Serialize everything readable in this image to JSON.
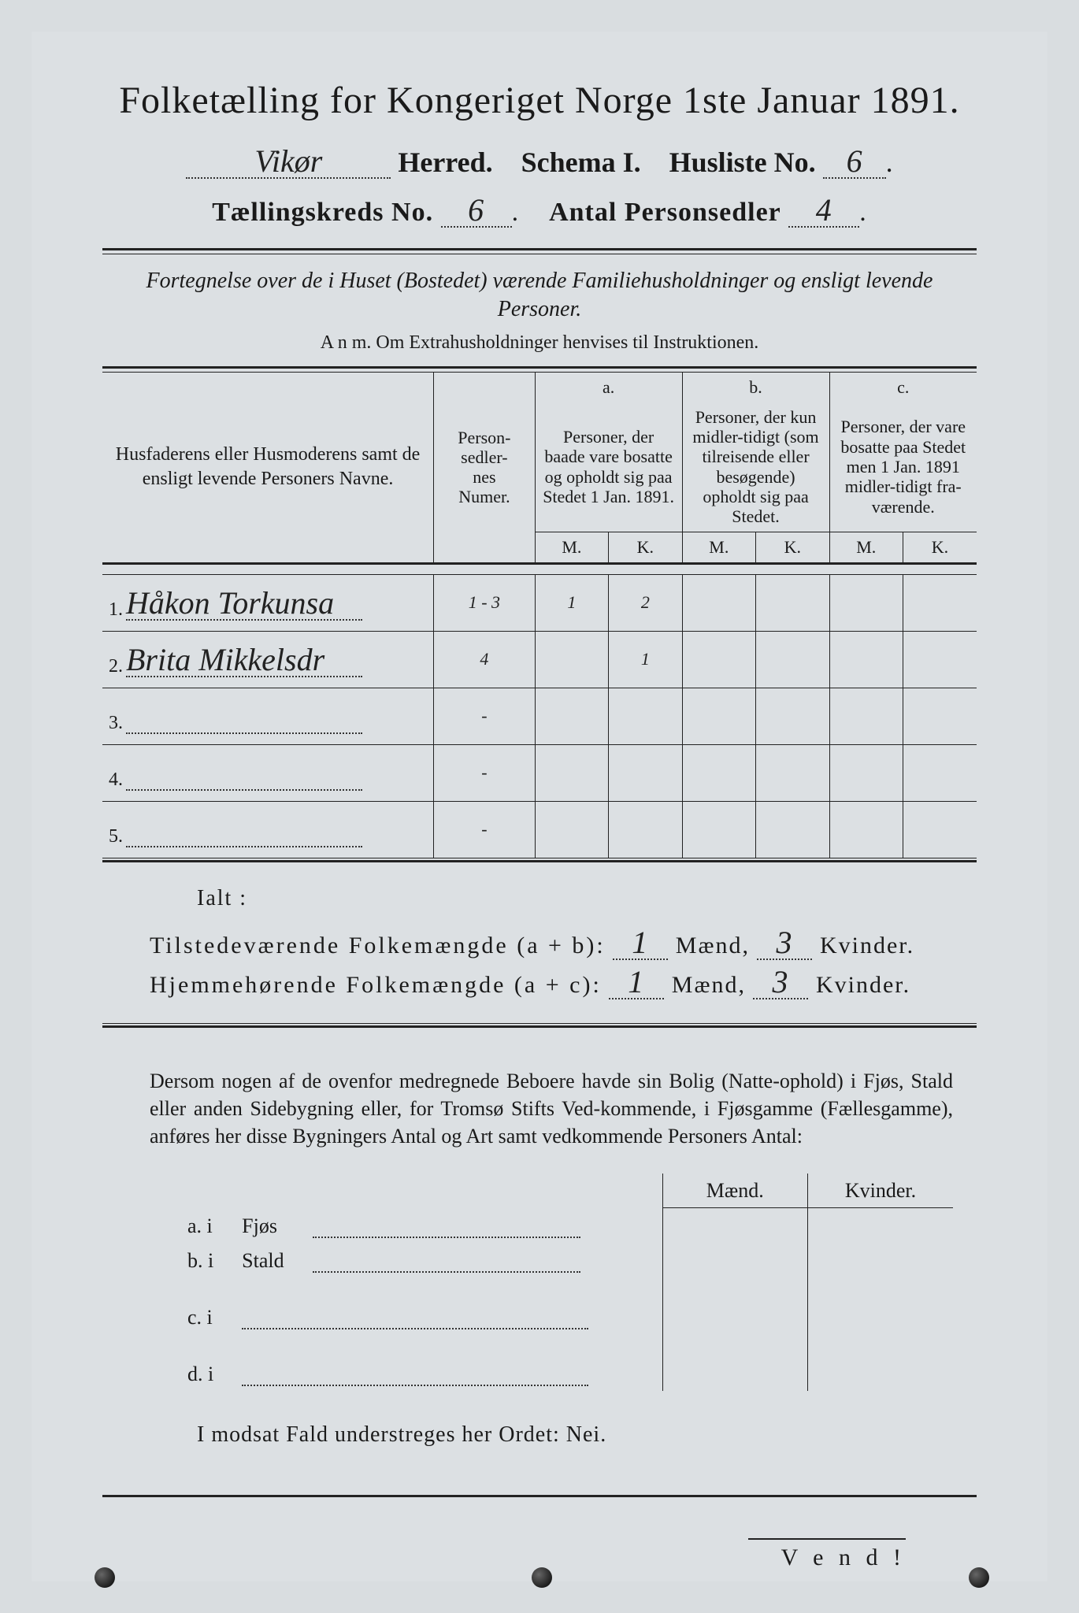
{
  "background_color": "#d9dde0",
  "text_color": "#1a1a1a",
  "title": "Folketælling for Kongeriget Norge 1ste Januar 1891.",
  "line2": {
    "herred_hw": "Vikør",
    "herred_label": "Herred.",
    "schema_label": "Schema I.",
    "husliste_label": "Husliste No.",
    "husliste_hw": "6"
  },
  "line3": {
    "kreds_label": "Tællingskreds No.",
    "kreds_hw": "6",
    "antal_label": "Antal Personsedler",
    "antal_hw": "4"
  },
  "subtitle": "Fortegnelse over de i Huset (Bostedet) værende Familiehusholdninger og ensligt levende Personer.",
  "anm": "A n m.  Om Extrahusholdninger henvises til Instruktionen.",
  "table": {
    "col_name_header": "Husfaderens eller Husmoderens samt de ensligt levende Personers Navne.",
    "col_num_header": "Person-\nsedler-\nnes\nNumer.",
    "col_a_label": "a.",
    "col_a_text": "Personer, der baade vare bosatte og opholdt sig paa Stedet 1 Jan. 1891.",
    "col_b_label": "b.",
    "col_b_text": "Personer, der kun midler-tidigt (som tilreisende eller besøgende) opholdt sig paa Stedet.",
    "col_c_label": "c.",
    "col_c_text": "Personer, der vare bosatte paa Stedet men 1 Jan. 1891 midler-tidigt fra-værende.",
    "M": "M.",
    "K": "K.",
    "rows": [
      {
        "n": "1.",
        "name": "Håkon Torkunsa",
        "num": "1 - 3",
        "aM": "1",
        "aK": "2",
        "bM": "",
        "bK": "",
        "cM": "",
        "cK": ""
      },
      {
        "n": "2.",
        "name": "Brita Mikkelsdr",
        "num": "4",
        "aM": "",
        "aK": "1",
        "bM": "",
        "bK": "",
        "cM": "",
        "cK": ""
      },
      {
        "n": "3.",
        "name": "",
        "num": "-",
        "aM": "",
        "aK": "",
        "bM": "",
        "bK": "",
        "cM": "",
        "cK": ""
      },
      {
        "n": "4.",
        "name": "",
        "num": "-",
        "aM": "",
        "aK": "",
        "bM": "",
        "bK": "",
        "cM": "",
        "cK": ""
      },
      {
        "n": "5.",
        "name": "",
        "num": "-",
        "aM": "",
        "aK": "",
        "bM": "",
        "bK": "",
        "cM": "",
        "cK": ""
      }
    ]
  },
  "ialt": "Ialt :",
  "summary": {
    "line1_label": "Tilstedeværende Folkemængde (a + b):",
    "line2_label": "Hjemmehørende Folkemængde (a + c):",
    "maend": "Mænd,",
    "kvinder": "Kvinder.",
    "l1_m": "1",
    "l1_k": "3",
    "l2_m": "1",
    "l2_k": "3"
  },
  "para": "Dersom nogen af de ovenfor medregnede Beboere havde sin Bolig (Natte-ophold) i Fjøs, Stald eller anden Sidebygning eller, for Tromsø Stifts Ved-kommende, i Fjøsgamme (Fællesgamme), anføres her disse Bygningers Antal og Art samt vedkommende Personers Antal:",
  "out": {
    "head_m": "Mænd.",
    "head_k": "Kvinder.",
    "rows": [
      {
        "lab": "a.  i",
        "nm": "Fjøs"
      },
      {
        "lab": "b.  i",
        "nm": "Stald"
      },
      {
        "lab": "c.  i",
        "nm": ""
      },
      {
        "lab": "d.  i",
        "nm": ""
      }
    ]
  },
  "nei": "I modsat Fald understreges her Ordet: Nei.",
  "vend": "V e n d !"
}
